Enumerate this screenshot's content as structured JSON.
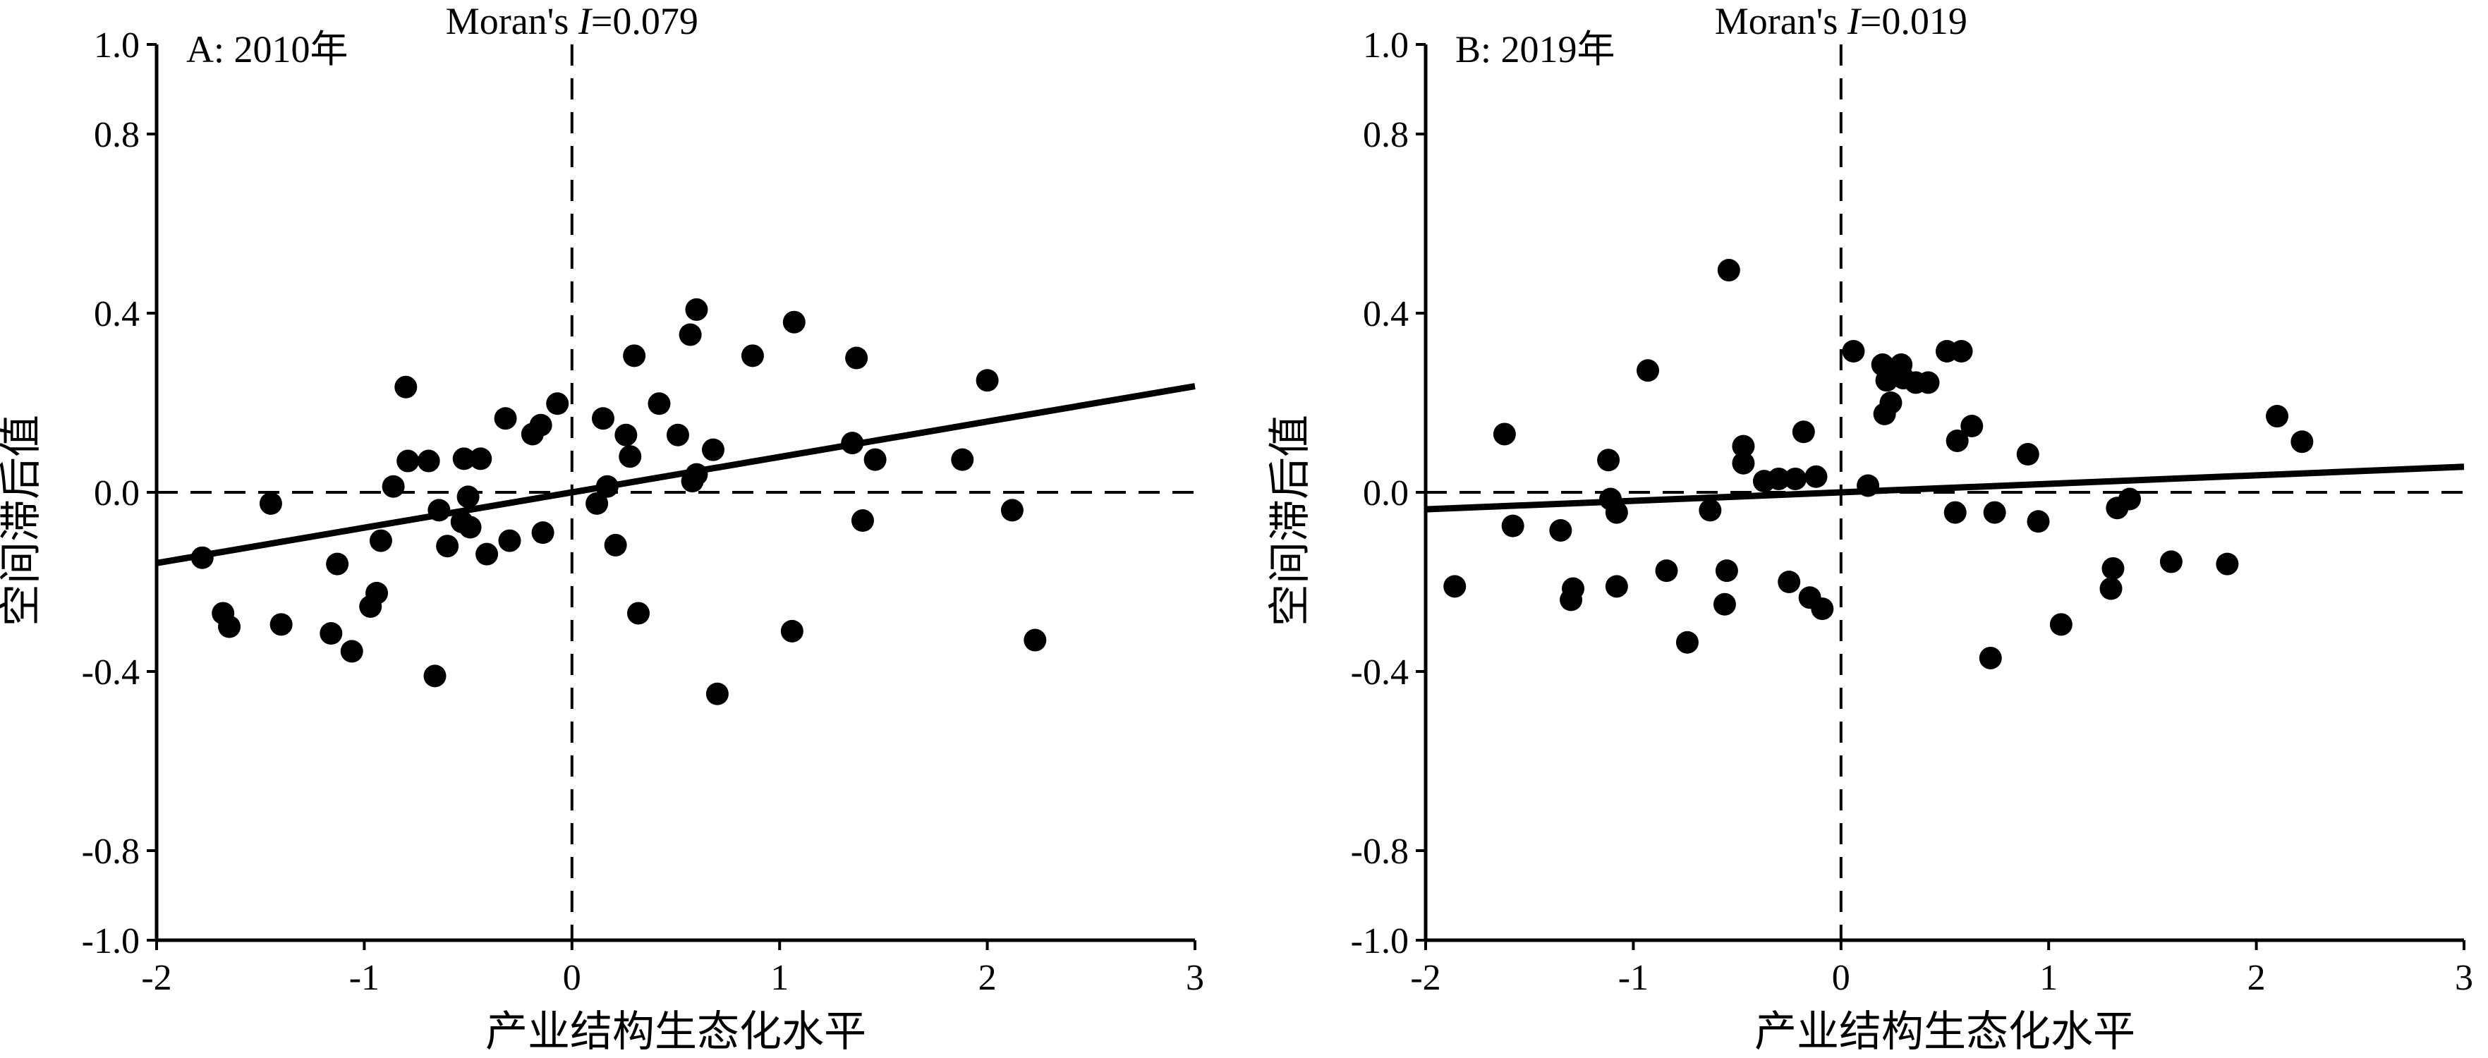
{
  "chart_data": [
    {
      "type": "scatter",
      "panel_label": "A: 2010年",
      "annotation": {
        "prefix": "Moran's ",
        "italic": "I",
        "suffix": "=0.079"
      },
      "xlabel": "产业结构生态化水平",
      "ylabel": "空间滞后值",
      "xlim": [
        -2,
        3
      ],
      "ylim": [
        -1.0,
        1.0
      ],
      "xticks": [
        -2,
        -1,
        0,
        1,
        2,
        3
      ],
      "xtick_labels": [
        "-2",
        "-1",
        "0",
        "1",
        "2",
        "3"
      ],
      "yticks": [
        -1.0,
        -0.8,
        -0.4,
        0.0,
        0.4,
        0.8,
        1.0
      ],
      "ytick_labels": [
        "-1.0",
        "-0.8",
        "-0.4",
        "0.0",
        "0.4",
        "0.8",
        "1.0"
      ],
      "reference_lines": {
        "x": 0,
        "y": 0,
        "style": "dashed"
      },
      "fit_line": {
        "slope": 0.079,
        "intercept": 0.0
      },
      "points": [
        [
          -1.78,
          -0.146
        ],
        [
          -1.68,
          -0.27
        ],
        [
          -1.65,
          -0.3
        ],
        [
          -1.45,
          -0.025
        ],
        [
          -1.4,
          -0.295
        ],
        [
          -1.16,
          -0.315
        ],
        [
          -1.13,
          -0.16
        ],
        [
          -1.06,
          -0.355
        ],
        [
          -0.97,
          -0.255
        ],
        [
          -0.94,
          -0.225
        ],
        [
          -0.92,
          -0.108
        ],
        [
          -0.86,
          0.013
        ],
        [
          -0.8,
          0.235
        ],
        [
          -0.79,
          0.07
        ],
        [
          -0.69,
          0.07
        ],
        [
          -0.66,
          -0.41
        ],
        [
          -0.64,
          -0.04
        ],
        [
          -0.6,
          -0.12
        ],
        [
          -0.53,
          -0.066
        ],
        [
          -0.52,
          0.075
        ],
        [
          -0.5,
          -0.01
        ],
        [
          -0.49,
          -0.078
        ],
        [
          -0.44,
          0.075
        ],
        [
          -0.41,
          -0.138
        ],
        [
          -0.32,
          0.165
        ],
        [
          -0.3,
          -0.108
        ],
        [
          -0.19,
          0.13
        ],
        [
          -0.15,
          0.15
        ],
        [
          -0.14,
          -0.09
        ],
        [
          -0.07,
          0.198
        ],
        [
          0.12,
          -0.025
        ],
        [
          0.15,
          0.165
        ],
        [
          0.17,
          0.013
        ],
        [
          0.21,
          -0.118
        ],
        [
          0.26,
          0.128
        ],
        [
          0.28,
          0.08
        ],
        [
          0.3,
          0.305
        ],
        [
          0.32,
          -0.27
        ],
        [
          0.42,
          0.198
        ],
        [
          0.51,
          0.128
        ],
        [
          0.57,
          0.352
        ],
        [
          0.58,
          0.025
        ],
        [
          0.6,
          0.408
        ],
        [
          0.6,
          0.04
        ],
        [
          0.68,
          0.095
        ],
        [
          0.7,
          -0.45
        ],
        [
          0.87,
          0.305
        ],
        [
          1.06,
          -0.31
        ],
        [
          1.07,
          0.38
        ],
        [
          1.35,
          0.11
        ],
        [
          1.37,
          0.3
        ],
        [
          1.4,
          -0.063
        ],
        [
          1.46,
          0.073
        ],
        [
          1.88,
          0.073
        ],
        [
          2.0,
          0.25
        ],
        [
          2.12,
          -0.04
        ],
        [
          2.23,
          -0.33
        ]
      ]
    },
    {
      "type": "scatter",
      "panel_label": "B: 2019年",
      "annotation": {
        "prefix": "Moran's ",
        "italic": "I",
        "suffix": "=0.019"
      },
      "xlabel": "产业结构生态化水平",
      "ylabel": "空间滞后值",
      "xlim": [
        -2,
        3
      ],
      "ylim": [
        -1.0,
        1.0
      ],
      "xticks": [
        -2,
        -1,
        0,
        1,
        2,
        3
      ],
      "xtick_labels": [
        "-2",
        "-1",
        "0",
        "1",
        "2",
        "3"
      ],
      "yticks": [
        -1.0,
        -0.8,
        -0.4,
        0.0,
        0.4,
        0.8,
        1.0
      ],
      "ytick_labels": [
        "-1.0",
        "-0.8",
        "-0.4",
        "0.0",
        "0.4",
        "0.8",
        "1.0"
      ],
      "reference_lines": {
        "x": 0,
        "y": 0,
        "style": "dashed"
      },
      "fit_line": {
        "slope": 0.019,
        "intercept": 0.0
      },
      "points": [
        [
          -1.86,
          -0.21
        ],
        [
          -1.62,
          0.13
        ],
        [
          -1.58,
          -0.075
        ],
        [
          -1.35,
          -0.085
        ],
        [
          -1.3,
          -0.24
        ],
        [
          -1.29,
          -0.215
        ],
        [
          -1.12,
          0.072
        ],
        [
          -1.11,
          -0.015
        ],
        [
          -1.08,
          -0.045
        ],
        [
          -1.08,
          -0.21
        ],
        [
          -0.93,
          0.272
        ],
        [
          -0.84,
          -0.175
        ],
        [
          -0.74,
          -0.335
        ],
        [
          -0.63,
          -0.04
        ],
        [
          -0.56,
          -0.25
        ],
        [
          -0.55,
          -0.175
        ],
        [
          -0.54,
          0.496
        ],
        [
          -0.47,
          0.065
        ],
        [
          -0.47,
          0.103
        ],
        [
          -0.37,
          0.025
        ],
        [
          -0.3,
          0.03
        ],
        [
          -0.25,
          -0.2
        ],
        [
          -0.22,
          0.03
        ],
        [
          -0.18,
          0.135
        ],
        [
          -0.15,
          -0.235
        ],
        [
          -0.12,
          0.035
        ],
        [
          -0.09,
          -0.26
        ],
        [
          0.06,
          0.315
        ],
        [
          0.13,
          0.015
        ],
        [
          0.2,
          0.285
        ],
        [
          0.21,
          0.175
        ],
        [
          0.22,
          0.25
        ],
        [
          0.24,
          0.2
        ],
        [
          0.26,
          0.27
        ],
        [
          0.29,
          0.285
        ],
        [
          0.3,
          0.255
        ],
        [
          0.36,
          0.245
        ],
        [
          0.42,
          0.245
        ],
        [
          0.51,
          0.315
        ],
        [
          0.55,
          -0.045
        ],
        [
          0.56,
          0.115
        ],
        [
          0.58,
          0.315
        ],
        [
          0.63,
          0.148
        ],
        [
          0.72,
          -0.37
        ],
        [
          0.74,
          -0.045
        ],
        [
          0.9,
          0.085
        ],
        [
          0.95,
          -0.065
        ],
        [
          1.06,
          -0.295
        ],
        [
          1.3,
          -0.215
        ],
        [
          1.31,
          -0.17
        ],
        [
          1.33,
          -0.035
        ],
        [
          1.39,
          -0.015
        ],
        [
          1.59,
          -0.155
        ],
        [
          1.86,
          -0.16
        ],
        [
          2.1,
          0.17
        ],
        [
          2.22,
          0.113
        ]
      ]
    }
  ]
}
